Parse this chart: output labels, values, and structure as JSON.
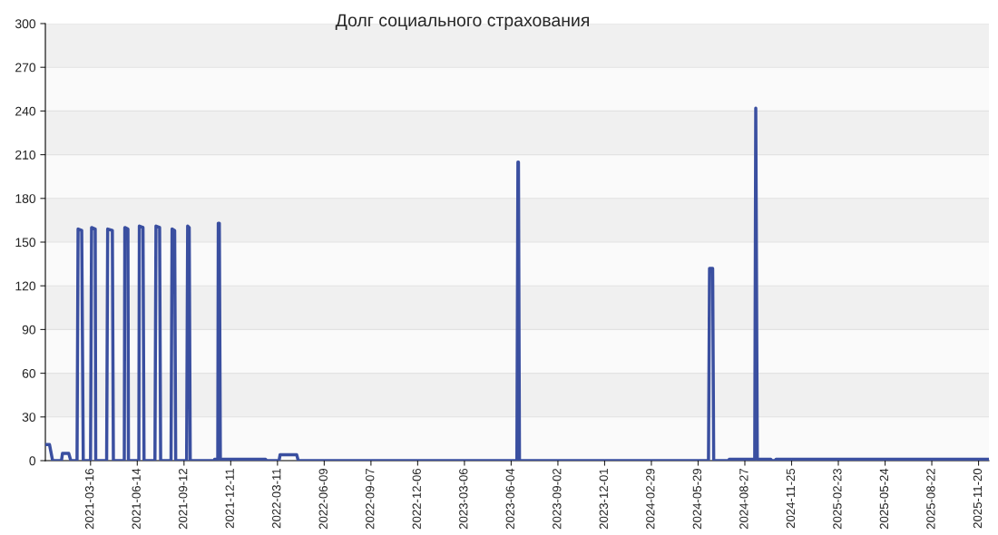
{
  "chart_data": {
    "type": "line",
    "title": "Долг социального страхования",
    "x": [
      "2020-12-19",
      "2020-12-27",
      "2021-01-02",
      "2021-01-19",
      "2021-01-21",
      "2021-02-02",
      "2021-02-06",
      "2021-02-18",
      "2021-02-20",
      "2021-02-27",
      "2021-03-02",
      "2021-03-16",
      "2021-03-18",
      "2021-03-25",
      "2021-03-26",
      "2021-04-16",
      "2021-04-18",
      "2021-04-27",
      "2021-04-29",
      "2021-05-20",
      "2021-05-21",
      "2021-05-27",
      "2021-05-28",
      "2021-06-17",
      "2021-06-18",
      "2021-06-25",
      "2021-06-27",
      "2021-07-18",
      "2021-07-20",
      "2021-07-27",
      "2021-07-29",
      "2021-08-18",
      "2021-08-20",
      "2021-08-25",
      "2021-08-27",
      "2021-09-17",
      "2021-09-19",
      "2021-09-22",
      "2021-09-24",
      "2021-11-09",
      "2021-11-10",
      "2021-11-16",
      "2021-11-17",
      "2021-11-19",
      "2021-11-21",
      "2022-02-16",
      "2022-02-18",
      "2022-03-14",
      "2022-03-16",
      "2022-04-17",
      "2022-04-20",
      "2023-06-15",
      "2023-06-17",
      "2023-06-18",
      "2023-06-20",
      "2024-06-18",
      "2024-06-20",
      "2024-06-26",
      "2024-06-28",
      "2024-07-26",
      "2024-07-28",
      "2024-09-15",
      "2024-09-17",
      "2024-09-20",
      "2024-10-16",
      "2024-10-18",
      "2024-10-24",
      "2024-10-26",
      "2025-12-10"
    ],
    "series": [
      {
        "color": "#3a4fa0",
        "values": [
          11,
          11,
          0,
          0,
          5,
          5,
          0,
          0,
          159,
          158,
          0,
          0,
          160,
          159,
          0,
          0,
          159,
          158,
          0,
          0,
          160,
          159,
          0,
          0,
          161,
          160,
          0,
          0,
          161,
          160,
          0,
          0,
          159,
          158,
          0,
          0,
          161,
          160,
          0,
          0,
          1,
          1,
          163,
          163,
          1,
          1,
          0,
          0,
          4,
          4,
          0,
          0,
          205,
          205,
          0,
          0,
          132,
          132,
          0,
          0,
          1,
          1,
          242,
          1,
          1,
          0,
          0,
          1,
          1
        ]
      }
    ],
    "xlim": [
      "2020-12-19",
      "2025-12-10"
    ],
    "xticks": [
      "2021-03-16",
      "2021-06-14",
      "2021-09-12",
      "2021-12-11",
      "2022-03-11",
      "2022-06-09",
      "2022-09-07",
      "2022-12-06",
      "2023-03-06",
      "2023-06-04",
      "2023-09-02",
      "2023-12-01",
      "2024-02-29",
      "2024-05-29",
      "2024-08-27",
      "2024-11-25",
      "2025-02-23",
      "2025-05-24",
      "2025-08-22",
      "2025-11-20"
    ],
    "ylim": [
      0,
      300
    ],
    "yticks": [
      0,
      30,
      60,
      90,
      120,
      150,
      180,
      210,
      240,
      270,
      300
    ],
    "grid": "y",
    "legend": false,
    "marker": "none",
    "line_style": "solid"
  }
}
